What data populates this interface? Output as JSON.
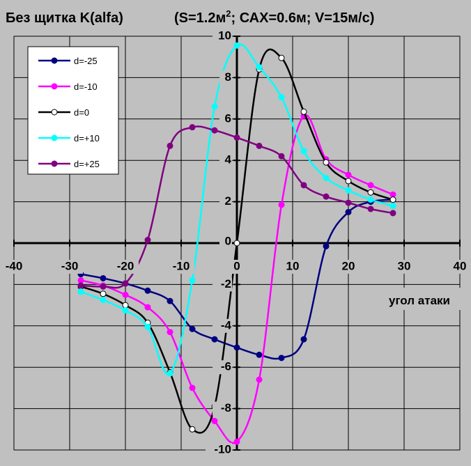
{
  "chart_data": {
    "type": "line",
    "title": "Без щитка K(alfa)",
    "subtitle": {
      "pre": "(S=1.2м",
      "sup": "2",
      "post": "; САХ=0.6м; V=15м/с)"
    },
    "xlabel": "угол атаки",
    "ylabel": "",
    "xlim": [
      -40,
      40
    ],
    "ylim": [
      -10,
      10
    ],
    "x_ticks": [
      -40,
      -30,
      -20,
      -10,
      0,
      10,
      20,
      30,
      40
    ],
    "x_tick_labels": [
      "-40",
      "-30",
      "-20",
      "-10",
      "0",
      "10",
      "20",
      "30",
      "40"
    ],
    "y_ticks": [
      -10,
      -8,
      -6,
      -4,
      -2,
      0,
      2,
      4,
      6,
      8,
      10
    ],
    "y_tick_labels": [
      "-10",
      "-8",
      "-6",
      "-4",
      "-2",
      "0",
      "2",
      "4",
      "6",
      "8",
      "10"
    ],
    "grid": true,
    "legend_position": "top-left",
    "series": [
      {
        "name": "d=-25",
        "color": "#000080",
        "marker_fill": "#000080",
        "x": [
          -28,
          -24,
          -20,
          -16,
          -12,
          -8,
          -4,
          0,
          4,
          8,
          12,
          16,
          20,
          24,
          28
        ],
        "y": [
          -1.5,
          -1.7,
          -1.95,
          -2.3,
          -2.8,
          -4.15,
          -4.65,
          -5.05,
          -5.4,
          -5.55,
          -4.65,
          -0.15,
          1.5,
          2.0,
          2.1
        ]
      },
      {
        "name": "d=-10",
        "color": "#ff00ff",
        "marker_fill": "#ff00ff",
        "x": [
          -28,
          -24,
          -20,
          -16,
          -12,
          -8,
          -4,
          0,
          4,
          8,
          12,
          16,
          20,
          24,
          28
        ],
        "y": [
          -1.8,
          -2.05,
          -2.5,
          -3.1,
          -4.3,
          -7.0,
          -8.6,
          -9.6,
          -6.6,
          1.85,
          6.15,
          4.05,
          3.3,
          2.8,
          2.35
        ]
      },
      {
        "name": "d=0",
        "color": "#000000",
        "marker_fill": "#ffffff",
        "x": [
          -28,
          -24,
          -20,
          -16,
          -12,
          -8,
          -4,
          0,
          4,
          8,
          12,
          16,
          20,
          24,
          28
        ],
        "y": [
          -2.1,
          -2.45,
          -3.0,
          -3.85,
          -6.25,
          -9.0,
          -7.9,
          0.0,
          8.4,
          8.95,
          6.35,
          3.9,
          3.0,
          2.45,
          2.1
        ]
      },
      {
        "name": "d=+10",
        "color": "#00ffff",
        "marker_fill": "#00ffff",
        "x": [
          -28,
          -24,
          -20,
          -16,
          -12,
          -8,
          -4,
          0,
          4,
          8,
          12,
          16,
          20,
          24,
          28
        ],
        "y": [
          -2.35,
          -2.75,
          -3.25,
          -4.05,
          -6.3,
          -1.8,
          6.6,
          9.55,
          8.5,
          7.05,
          4.45,
          3.15,
          2.55,
          2.1,
          1.8
        ]
      },
      {
        "name": "d=+25",
        "color": "#800080",
        "marker_fill": "#800080",
        "x": [
          -28,
          -24,
          -20,
          -16,
          -12,
          -8,
          -4,
          0,
          4,
          8,
          12,
          16,
          20,
          24,
          28
        ],
        "y": [
          -2.05,
          -2.1,
          -1.95,
          0.15,
          4.7,
          5.6,
          5.45,
          5.1,
          4.7,
          4.2,
          2.8,
          2.25,
          1.95,
          1.65,
          1.45
        ]
      }
    ]
  }
}
